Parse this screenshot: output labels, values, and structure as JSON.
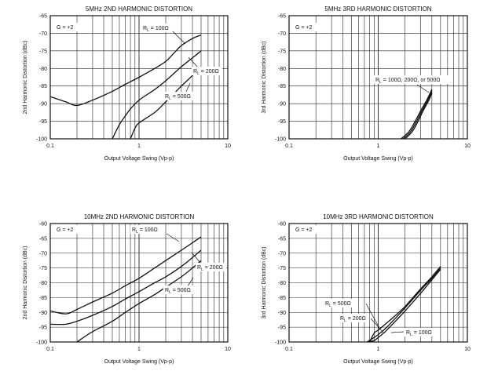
{
  "chart_data": [
    {
      "type": "line",
      "title": "5MHz 2ND HARMONIC DISTORTION",
      "xlabel": "Output Voltage Swing (Vp-p)",
      "ylabel": "2nd Harmonic Distortion (dBc)",
      "x_scale": "log",
      "xlim": [
        0.1,
        10
      ],
      "ylim": [
        -100,
        -65
      ],
      "xticks": [
        "0.1",
        "1",
        "10"
      ],
      "yticks": [
        "-65",
        "-70",
        "-75",
        "-80",
        "-85",
        "-90",
        "-95",
        "-100"
      ],
      "gain_label": "G = +2",
      "series": [
        {
          "name": "RL = 100Ω",
          "x": [
            0.1,
            0.15,
            0.2,
            0.3,
            0.5,
            0.7,
            1,
            1.5,
            2,
            2.5,
            3,
            4,
            5
          ],
          "y": [
            -88,
            -89.5,
            -90.5,
            -89,
            -86.5,
            -84.5,
            -82.5,
            -80,
            -78,
            -75.5,
            -73.5,
            -71.5,
            -70.5
          ]
        },
        {
          "name": "RL = 200Ω",
          "x": [
            0.5,
            0.6,
            0.7,
            0.8,
            1,
            1.5,
            2,
            3,
            4,
            5
          ],
          "y": [
            -100,
            -96,
            -93.5,
            -91.5,
            -89,
            -86,
            -83.5,
            -79.5,
            -77,
            -75
          ]
        },
        {
          "name": "RL = 500Ω",
          "x": [
            0.8,
            0.9,
            1,
            1.5,
            2,
            3,
            4,
            5
          ],
          "y": [
            -100,
            -97,
            -95.5,
            -92.5,
            -89.5,
            -85,
            -82,
            -79.5
          ]
        }
      ],
      "annotations": [
        {
          "main": "R",
          "sub": "L",
          "value": " = 100Ω"
        },
        {
          "main": "R",
          "sub": "L",
          "value": " = 200Ω"
        },
        {
          "main": "R",
          "sub": "L",
          "value": " = 500Ω"
        }
      ]
    },
    {
      "type": "line",
      "title": "5MHz 3RD HARMONIC DISTORTION",
      "xlabel": "Output Voltage Swing (Vp-p)",
      "ylabel": "3rd Harmonic Distortion (dBc)",
      "x_scale": "log",
      "xlim": [
        0.1,
        10
      ],
      "ylim": [
        -100,
        -65
      ],
      "xticks": [
        "0.1",
        "1",
        "10"
      ],
      "yticks": [
        "-65",
        "-70",
        "-75",
        "-80",
        "-85",
        "-90",
        "-95",
        "-100"
      ],
      "gain_label": "G = +2",
      "series": [
        {
          "name": "RL = 100Ω",
          "x": [
            1.8,
            2.2,
            2.6,
            3,
            3.5,
            4
          ],
          "y": [
            -100,
            -98,
            -95,
            -92,
            -89,
            -86
          ]
        },
        {
          "name": "RL = 200Ω",
          "x": [
            1.9,
            2.3,
            2.7,
            3.1,
            3.6,
            4
          ],
          "y": [
            -100,
            -98,
            -95,
            -92,
            -89,
            -86.5
          ]
        },
        {
          "name": "RL = 500Ω",
          "x": [
            2,
            2.4,
            2.8,
            3.2,
            3.7,
            4
          ],
          "y": [
            -100,
            -98,
            -95,
            -92,
            -89,
            -87
          ]
        }
      ],
      "annotations": [
        {
          "main": "R",
          "sub": "L",
          "value": " = 100Ω, 200Ω, or 500Ω"
        }
      ]
    },
    {
      "type": "line",
      "title": "10MHz 2ND HARMONIC DISTORTION",
      "xlabel": "Output Voltage Swing (Vp-p)",
      "ylabel": "2nd Harmonic Distortion (dBc)",
      "x_scale": "log",
      "xlim": [
        0.1,
        10
      ],
      "ylim": [
        -100,
        -60
      ],
      "xticks": [
        "0.1",
        "1",
        "10"
      ],
      "yticks": [
        "-60",
        "-65",
        "-70",
        "-75",
        "-80",
        "-85",
        "-90",
        "-95",
        "-100"
      ],
      "gain_label": "G = +2",
      "series": [
        {
          "name": "RL = 100Ω",
          "x": [
            0.1,
            0.15,
            0.2,
            0.3,
            0.5,
            0.7,
            1,
            1.5,
            2,
            3,
            4,
            5
          ],
          "y": [
            -89.5,
            -90.5,
            -89,
            -86.5,
            -83.5,
            -81,
            -78.5,
            -75,
            -72.5,
            -69,
            -66.5,
            -64.5
          ]
        },
        {
          "name": "RL = 200Ω",
          "x": [
            0.1,
            0.15,
            0.2,
            0.3,
            0.5,
            0.7,
            1,
            1.5,
            2,
            3,
            4,
            5
          ],
          "y": [
            -94,
            -94,
            -93,
            -91,
            -88,
            -85.5,
            -83,
            -80,
            -78,
            -74.5,
            -71.5,
            -69
          ]
        },
        {
          "name": "RL = 500Ω",
          "x": [
            0.2,
            0.25,
            0.3,
            0.5,
            0.7,
            1,
            1.5,
            2,
            3,
            4,
            5
          ],
          "y": [
            -100,
            -98,
            -96.5,
            -93,
            -90,
            -87,
            -84,
            -81.5,
            -78,
            -75,
            -72.5
          ]
        }
      ],
      "annotations": [
        {
          "main": "R",
          "sub": "L",
          "value": " = 100Ω"
        },
        {
          "main": "R",
          "sub": "L",
          "value": " = 200Ω"
        },
        {
          "main": "R",
          "sub": "L",
          "value": " = 500Ω"
        }
      ]
    },
    {
      "type": "line",
      "title": "10MHz 3RD HARMONIC DISTORTION",
      "xlabel": "Output Voltage Swing (Vp-p)",
      "ylabel": "3rd Harmonic Distortion (dBc)",
      "x_scale": "log",
      "xlim": [
        0.1,
        10
      ],
      "ylim": [
        -100,
        -60
      ],
      "xticks": [
        "0.1",
        "1",
        "10"
      ],
      "yticks": [
        "-60",
        "-65",
        "-70",
        "-75",
        "-80",
        "-85",
        "-90",
        "-95",
        "-100"
      ],
      "gain_label": "G = +2",
      "series": [
        {
          "name": "RL = 100Ω",
          "x": [
            0.75,
            0.9,
            1,
            1.2,
            1.5,
            2,
            3,
            4,
            5
          ],
          "y": [
            -100,
            -99.5,
            -98.5,
            -96.5,
            -93.5,
            -89.5,
            -83.5,
            -79,
            -75.5
          ]
        },
        {
          "name": "RL = 200Ω",
          "x": [
            0.75,
            0.9,
            1,
            1.2,
            1.5,
            2,
            3,
            4,
            5
          ],
          "y": [
            -100,
            -98.5,
            -97.5,
            -95.5,
            -92.5,
            -88.5,
            -82.5,
            -78.5,
            -75
          ]
        },
        {
          "name": "RL = 500Ω",
          "x": [
            0.8,
            0.9,
            1,
            1.2,
            1.5,
            2,
            3,
            4,
            5
          ],
          "y": [
            -100,
            -97,
            -96,
            -94,
            -91.5,
            -88,
            -82,
            -78,
            -74.5
          ]
        }
      ],
      "annotations": [
        {
          "main": "R",
          "sub": "L",
          "value": " = 500Ω"
        },
        {
          "main": "R",
          "sub": "L",
          "value": " = 200Ω"
        },
        {
          "main": "R",
          "sub": "L",
          "value": " = 100Ω"
        }
      ]
    }
  ]
}
